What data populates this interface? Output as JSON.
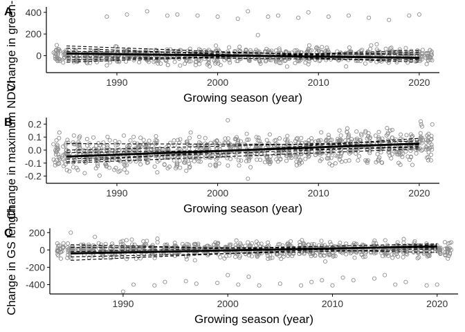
{
  "colors": {
    "points": "#8c8c8c",
    "trend_lines": "#000000",
    "axis": "#000000",
    "background": "#ffffff"
  },
  "chart_data": [
    {
      "type": "scatter",
      "panel": "A",
      "title": "",
      "xlabel": "Growing season (year)",
      "ylabel": "Change in green-up",
      "xlim": [
        1983,
        2022
      ],
      "ylim": [
        -150,
        450
      ],
      "x_ticks": [
        "1990",
        "2000",
        "2010",
        "2020"
      ],
      "y_ticks": [
        "0",
        "200",
        "400"
      ],
      "y_tick_values": [
        0,
        200,
        400
      ],
      "grid": false,
      "legend": "none",
      "points_per_year": {
        "x": [
          1984,
          1985,
          1986,
          1987,
          1988,
          1989,
          1990,
          1991,
          1992,
          1993,
          1994,
          1995,
          1996,
          1997,
          1998,
          1999,
          2000,
          2001,
          2002,
          2003,
          2004,
          2005,
          2006,
          2007,
          2008,
          2009,
          2010,
          2011,
          2012,
          2013,
          2014,
          2015,
          2016,
          2017,
          2018,
          2019,
          2020,
          2021
        ],
        "center": 0,
        "spread": 35,
        "min": -120,
        "max": 120
      },
      "outliers": [
        [
          1989,
          360
        ],
        [
          1991,
          380
        ],
        [
          1993,
          410
        ],
        [
          1995,
          370
        ],
        [
          1996,
          380
        ],
        [
          1998,
          370
        ],
        [
          2000,
          360
        ],
        [
          2002,
          340
        ],
        [
          2003,
          410
        ],
        [
          2004,
          190
        ],
        [
          2005,
          360
        ],
        [
          2006,
          370
        ],
        [
          2008,
          350
        ],
        [
          2009,
          400
        ],
        [
          2011,
          360
        ],
        [
          2013,
          370
        ],
        [
          2015,
          350
        ],
        [
          2017,
          330
        ],
        [
          2019,
          370
        ],
        [
          2020,
          380
        ]
      ],
      "trend_lines": [
        {
          "x": [
            1985,
            2020
          ],
          "y": [
            20,
            -20
          ]
        },
        {
          "x": [
            1985,
            2020
          ],
          "y": [
            70,
            -60
          ]
        },
        {
          "x": [
            1985,
            2020
          ],
          "y": [
            -40,
            30
          ]
        },
        {
          "x": [
            1985,
            2020
          ],
          "y": [
            40,
            10
          ]
        },
        {
          "x": [
            1985,
            2020
          ],
          "y": [
            -10,
            -40
          ]
        },
        {
          "x": [
            1985,
            2020
          ],
          "y": [
            90,
            -30
          ]
        },
        {
          "x": [
            1985,
            2020
          ],
          "y": [
            -60,
            50
          ]
        }
      ]
    },
    {
      "type": "scatter",
      "panel": "B",
      "title": "",
      "xlabel": "Growing season (year)",
      "ylabel": "Change in maximum NDVI",
      "xlim": [
        1983,
        2022
      ],
      "ylim": [
        -0.25,
        0.25
      ],
      "x_ticks": [
        "1990",
        "2000",
        "2010",
        "2020"
      ],
      "y_ticks": [
        "-0.2",
        "-0.1",
        "0.0",
        "0.1",
        "0.2"
      ],
      "y_tick_values": [
        -0.2,
        -0.1,
        0,
        0.1,
        0.2
      ],
      "grid": false,
      "legend": "none",
      "points_per_year": {
        "x": [
          1984,
          1985,
          1986,
          1987,
          1988,
          1989,
          1990,
          1991,
          1992,
          1993,
          1994,
          1995,
          1996,
          1997,
          1998,
          1999,
          2000,
          2001,
          2002,
          2003,
          2004,
          2005,
          2006,
          2007,
          2008,
          2009,
          2010,
          2011,
          2012,
          2013,
          2014,
          2015,
          2016,
          2017,
          2018,
          2019,
          2020,
          2021
        ],
        "center_start": -0.04,
        "center_end": 0.04,
        "spread": 0.06,
        "min": -0.23,
        "max": 0.22
      },
      "outliers": [
        [
          2001,
          0.23
        ],
        [
          2003,
          -0.22
        ]
      ],
      "trend_lines": [
        {
          "x": [
            1985,
            2020
          ],
          "y": [
            -0.05,
            0.05
          ]
        },
        {
          "x": [
            1985,
            2020
          ],
          "y": [
            -0.09,
            0.09
          ]
        },
        {
          "x": [
            1985,
            2020
          ],
          "y": [
            -0.02,
            0.02
          ]
        },
        {
          "x": [
            1985,
            2020
          ],
          "y": [
            0.05,
            0.04
          ]
        },
        {
          "x": [
            1985,
            2020
          ],
          "y": [
            -0.1,
            0.01
          ]
        },
        {
          "x": [
            1985,
            2020
          ],
          "y": [
            0.0,
            0.07
          ]
        },
        {
          "x": [
            1985,
            2020
          ],
          "y": [
            -0.07,
            0.03
          ]
        }
      ]
    },
    {
      "type": "scatter",
      "panel": "C",
      "title": "",
      "xlabel": "Growing season (year)",
      "ylabel": "Change in GS length",
      "xlim": [
        1983,
        2022
      ],
      "ylim": [
        -500,
        250
      ],
      "x_ticks": [
        "1990",
        "2000",
        "2010",
        "2020"
      ],
      "y_ticks": [
        "200",
        "0",
        "-200",
        "-400"
      ],
      "y_tick_values": [
        200,
        0,
        -200,
        -400
      ],
      "grid": false,
      "legend": "none",
      "points_per_year": {
        "x": [
          1984,
          1985,
          1986,
          1987,
          1988,
          1989,
          1990,
          1991,
          1992,
          1993,
          1994,
          1995,
          1996,
          1997,
          1998,
          1999,
          2000,
          2001,
          2002,
          2003,
          2004,
          2005,
          2006,
          2007,
          2008,
          2009,
          2010,
          2011,
          2012,
          2013,
          2014,
          2015,
          2016,
          2017,
          2018,
          2019,
          2020,
          2021
        ],
        "center": 0,
        "spread": 45,
        "min": -160,
        "max": 150
      },
      "outliers": [
        [
          1985,
          200
        ],
        [
          1990,
          -480
        ],
        [
          1991,
          -400
        ],
        [
          1993,
          -410
        ],
        [
          1994,
          -370
        ],
        [
          1996,
          -360
        ],
        [
          1997,
          -390
        ],
        [
          1999,
          -380
        ],
        [
          2000,
          -290
        ],
        [
          2001,
          -400
        ],
        [
          2002,
          -310
        ],
        [
          2003,
          -410
        ],
        [
          2005,
          -390
        ],
        [
          2007,
          -410
        ],
        [
          2008,
          -370
        ],
        [
          2009,
          -350
        ],
        [
          2010,
          -410
        ],
        [
          2011,
          -320
        ],
        [
          2012,
          -350
        ],
        [
          2014,
          -330
        ],
        [
          2015,
          -290
        ],
        [
          2016,
          -400
        ],
        [
          2017,
          -370
        ],
        [
          2019,
          -410
        ],
        [
          2020,
          -400
        ]
      ],
      "trend_lines": [
        {
          "x": [
            1985,
            2020
          ],
          "y": [
            -40,
            40
          ]
        },
        {
          "x": [
            1985,
            2020
          ],
          "y": [
            -120,
            60
          ]
        },
        {
          "x": [
            1985,
            2020
          ],
          "y": [
            30,
            20
          ]
        },
        {
          "x": [
            1985,
            2020
          ],
          "y": [
            -80,
            10
          ]
        },
        {
          "x": [
            1985,
            2020
          ],
          "y": [
            60,
            -30
          ]
        },
        {
          "x": [
            1985,
            2020
          ],
          "y": [
            -20,
            70
          ]
        }
      ]
    }
  ]
}
